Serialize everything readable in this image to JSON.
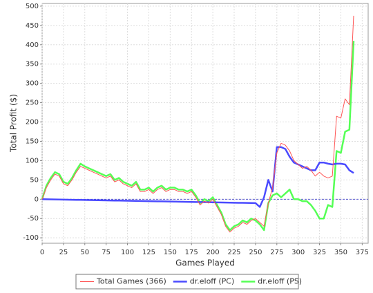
{
  "chart_data": {
    "type": "line",
    "x_label": "Games Played",
    "y_label": "Total Profit ($)",
    "x": [
      0,
      5,
      10,
      15,
      20,
      25,
      30,
      35,
      40,
      45,
      50,
      55,
      60,
      65,
      70,
      75,
      80,
      85,
      90,
      95,
      100,
      105,
      110,
      115,
      120,
      125,
      130,
      135,
      140,
      145,
      150,
      155,
      160,
      165,
      170,
      175,
      180,
      185,
      190,
      195,
      200,
      205,
      210,
      215,
      220,
      225,
      230,
      235,
      240,
      245,
      250,
      255,
      260,
      265,
      270,
      275,
      280,
      285,
      290,
      295,
      300,
      305,
      310,
      315,
      320,
      325,
      330,
      335,
      340,
      345,
      350,
      355,
      360,
      365
    ],
    "series": [
      {
        "name": "Total Games (366)",
        "color": "#ff5555",
        "width": 1,
        "values": [
          0,
          30,
          50,
          65,
          60,
          40,
          35,
          50,
          70,
          85,
          80,
          75,
          70,
          65,
          60,
          55,
          60,
          45,
          50,
          40,
          35,
          30,
          40,
          20,
          20,
          25,
          15,
          25,
          30,
          20,
          25,
          25,
          20,
          20,
          15,
          20,
          5,
          -15,
          -5,
          -10,
          0,
          -20,
          -40,
          -70,
          -85,
          -75,
          -70,
          -60,
          -65,
          -55,
          -50,
          -60,
          -70,
          -10,
          30,
          120,
          145,
          140,
          125,
          100,
          90,
          80,
          85,
          75,
          60,
          70,
          60,
          55,
          60,
          215,
          210,
          260,
          245,
          475
        ]
      },
      {
        "name": "dr.eloff (PC)",
        "color": "#4a4aff",
        "width": 2.5,
        "values": [
          0,
          -0.2,
          -0.4,
          -0.6,
          -0.8,
          -1,
          -1.2,
          -1.4,
          -1.6,
          -1.8,
          -2,
          -2.2,
          -2.4,
          -2.6,
          -2.8,
          -3,
          -3.2,
          -3.4,
          -3.6,
          -3.8,
          -4,
          -4.2,
          -4.4,
          -4.6,
          -4.8,
          -5,
          -5.2,
          -5.4,
          -5.6,
          -5.8,
          -6,
          -6.2,
          -6.4,
          -6.6,
          -6.8,
          -7,
          -7.2,
          -7.4,
          -7.6,
          -7.8,
          -8,
          -8.2,
          -8.4,
          -8.6,
          -8.8,
          -9,
          -9.2,
          -9.4,
          -9.6,
          -9.8,
          -10,
          -20,
          5,
          50,
          20,
          135,
          135,
          130,
          110,
          95,
          90,
          85,
          80,
          75,
          75,
          95,
          95,
          92,
          90,
          92,
          92,
          90,
          75,
          68
        ]
      },
      {
        "name": "dr.eloff (PS)",
        "color": "#55ff55",
        "width": 2.5,
        "values": [
          0,
          35,
          55,
          70,
          65,
          45,
          40,
          55,
          75,
          92,
          85,
          80,
          75,
          70,
          65,
          60,
          65,
          50,
          55,
          45,
          40,
          35,
          45,
          25,
          25,
          30,
          20,
          30,
          35,
          25,
          30,
          30,
          25,
          25,
          20,
          25,
          10,
          -10,
          0,
          -5,
          5,
          -15,
          -35,
          -65,
          -80,
          -70,
          -65,
          -55,
          -60,
          -50,
          -55,
          -65,
          -80,
          -10,
          10,
          15,
          5,
          15,
          25,
          0,
          0,
          -5,
          -5,
          -15,
          -30,
          -50,
          -50,
          -15,
          -20,
          125,
          120,
          175,
          180,
          410
        ]
      }
    ],
    "xlim": [
      0,
      382
    ],
    "xticks": [
      0,
      25,
      50,
      75,
      100,
      125,
      150,
      175,
      200,
      225,
      250,
      275,
      300,
      325,
      350,
      375
    ],
    "ylim": [
      -114,
      507
    ],
    "yticks": [
      -100,
      -50,
      0,
      50,
      100,
      150,
      200,
      250,
      300,
      350,
      400,
      450,
      500
    ],
    "grid": true,
    "legend": "bottom"
  }
}
